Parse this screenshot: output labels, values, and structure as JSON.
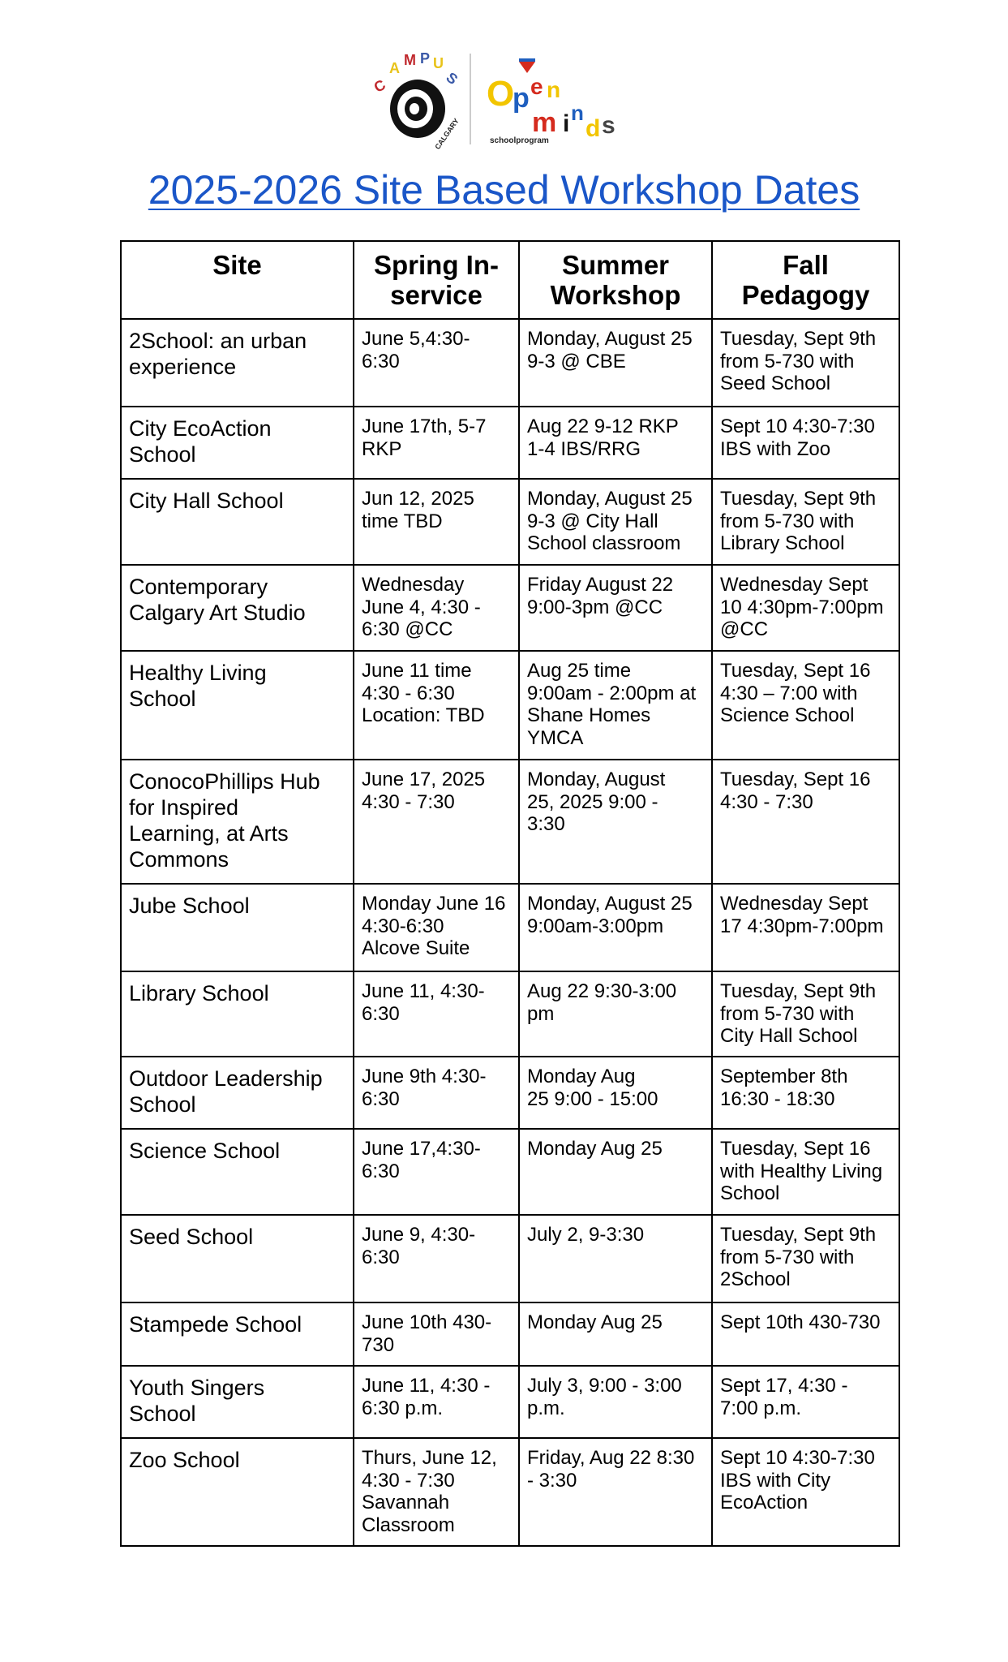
{
  "logos": {
    "left": {
      "text": "CAMPUS",
      "subtext": "CALGARY"
    },
    "right": {
      "brand": "Chevron",
      "text": "Open minds",
      "subtext": "schoolprogram"
    }
  },
  "title": "2025-2026 Site Based Workshop Dates",
  "table": {
    "headers": [
      "Site",
      "Spring In-\nservice",
      "Summer\nWorkshop",
      "Fall\nPedagogy"
    ],
    "rows": [
      [
        "2School: an urban\nexperience",
        "June 5,4:30-\n6:30",
        "Monday, August 25\n9-3 @ CBE",
        "Tuesday, Sept 9th\nfrom 5-730 with\nSeed School"
      ],
      [
        "City EcoAction\nSchool",
        "June 17th, 5-7\nRKP",
        "Aug 22 9-12 RKP\n1-4 IBS/RRG",
        "Sept 10 4:30-7:30\nIBS with Zoo"
      ],
      [
        "City Hall School",
        "Jun 12, 2025\ntime TBD",
        "Monday, August 25\n9-3 @ City Hall\nSchool classroom",
        "Tuesday, Sept 9th\nfrom 5-730 with\nLibrary School"
      ],
      [
        "Contemporary\nCalgary Art Studio",
        "Wednesday\nJune 4, 4:30 -\n6:30 @CC",
        "Friday August 22\n9:00-3pm @CC",
        "Wednesday Sept\n10 4:30pm-7:00pm\n@CC"
      ],
      [
        "Healthy Living\nSchool",
        "June 11 time\n4:30 - 6:30\nLocation: TBD",
        "Aug 25 time\n9:00am - 2:00pm at\nShane Homes\nYMCA",
        "Tuesday, Sept 16\n4:30 – 7:00 with\nScience School"
      ],
      [
        "ConocoPhillips Hub\nfor Inspired\nLearning, at Arts\nCommons",
        "June 17, 2025\n4:30 - 7:30",
        "Monday, August\n25, 2025 9:00 -\n3:30",
        "Tuesday, Sept 16\n4:30 - 7:30"
      ],
      [
        "Jube School",
        "Monday June 16\n4:30-6:30\nAlcove Suite",
        "Monday, August 25\n9:00am-3:00pm",
        "Wednesday Sept\n17 4:30pm-7:00pm"
      ],
      [
        "Library School",
        "June 11, 4:30-\n6:30",
        "Aug 22 9:30-3:00\npm",
        "Tuesday, Sept 9th\nfrom 5-730 with\nCity Hall School"
      ],
      [
        "Outdoor Leadership\nSchool",
        "June 9th 4:30-\n6:30",
        "Monday Aug\n25    9:00 - 15:00",
        "September 8th\n16:30 - 18:30"
      ],
      [
        "Science School",
        "June 17,4:30-\n6:30",
        "Monday Aug 25",
        "Tuesday, Sept 16\nwith Healthy Living\nSchool"
      ],
      [
        "Seed School",
        "June 9, 4:30-\n6:30",
        "July 2, 9-3:30",
        "Tuesday, Sept 9th\nfrom 5-730 with\n2School"
      ],
      [
        "Stampede School",
        "June 10th 430-\n730",
        "Monday Aug 25",
        "Sept 10th 430-730"
      ],
      [
        "Youth Singers\nSchool",
        "June 11, 4:30 -\n6:30 p.m.",
        "July 3, 9:00 - 3:00\np.m.",
        "Sept 17, 4:30 -\n7:00 p.m."
      ],
      [
        "Zoo School",
        "Thurs, June 12,\n4:30 - 7:30\nSavannah\nClassroom",
        "Friday, Aug 22 8:30\n- 3:30",
        "Sept 10 4:30-7:30\nIBS with City\nEcoAction"
      ]
    ]
  },
  "colors": {
    "title_link": "#1a56c8"
  }
}
